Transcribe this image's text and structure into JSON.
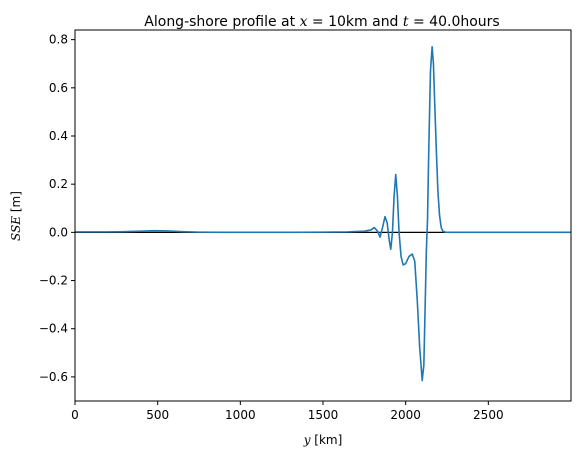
{
  "chart_data": {
    "type": "line",
    "title": {
      "prefix": "Along-shore profile at ",
      "var1": "x",
      "eq1": " = 10km and ",
      "var2": "t",
      "eq2": " = 40.0hours"
    },
    "xlabel": {
      "var": "y",
      "unit": " [km]"
    },
    "ylabel": {
      "var": "SSE",
      "unit": " [m]"
    },
    "xlim": [
      0,
      3000
    ],
    "ylim": [
      -0.7,
      0.84
    ],
    "xticks": [
      0,
      500,
      1000,
      1500,
      2000,
      2500
    ],
    "xtick_labels": [
      "0",
      "500",
      "1000",
      "1500",
      "2000",
      "2500"
    ],
    "yticks": [
      -0.6,
      -0.4,
      -0.2,
      0.0,
      0.2,
      0.4,
      0.6,
      0.8
    ],
    "ytick_labels": [
      "−0.6",
      "−0.4",
      "−0.2",
      "0.0",
      "0.2",
      "0.4",
      "0.6",
      "0.8"
    ],
    "grid": false,
    "reference_line_y": 0.0,
    "series": [
      {
        "color": "#1f77b4",
        "x": [
          0,
          100,
          200,
          300,
          400,
          480,
          560,
          650,
          750,
          900,
          1100,
          1300,
          1500,
          1650,
          1750,
          1790,
          1810,
          1830,
          1845,
          1860,
          1875,
          1888,
          1900,
          1910,
          1920,
          1930,
          1940,
          1950,
          1960,
          1972,
          1985,
          2000,
          2020,
          2040,
          2055,
          2070,
          2085,
          2100,
          2110,
          2118,
          2125,
          2132,
          2140,
          2150,
          2160,
          2168,
          2175,
          2185,
          2195,
          2205,
          2215,
          2225,
          2240,
          2260,
          2300,
          2400,
          2600,
          2800,
          3000
        ],
        "y": [
          0.002,
          0.002,
          0.002,
          0.003,
          0.005,
          0.007,
          0.006,
          0.003,
          0.001,
          0.0,
          0.0,
          0.0,
          0.001,
          0.002,
          0.005,
          0.01,
          0.02,
          0.005,
          -0.02,
          0.02,
          0.065,
          0.04,
          -0.03,
          -0.07,
          0.0,
          0.15,
          0.24,
          0.15,
          0.0,
          -0.1,
          -0.135,
          -0.13,
          -0.1,
          -0.09,
          -0.12,
          -0.28,
          -0.48,
          -0.615,
          -0.55,
          -0.3,
          -0.08,
          0.05,
          0.35,
          0.67,
          0.77,
          0.7,
          0.55,
          0.35,
          0.17,
          0.07,
          0.02,
          0.005,
          0.001,
          0.0,
          0.0,
          0.0,
          0.0,
          0.0,
          0.0
        ]
      }
    ]
  }
}
